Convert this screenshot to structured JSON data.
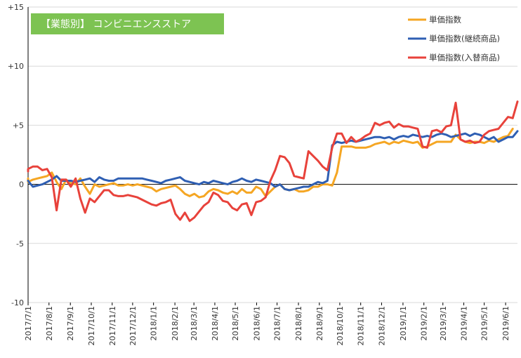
{
  "chart_data": {
    "type": "line",
    "title": "【業態別】 コンビニエンスストア",
    "ylim": [
      -10,
      15
    ],
    "yticks": [
      15,
      10,
      5,
      0,
      -5,
      -10
    ],
    "ytick_labels": [
      "+15",
      "+10",
      "+5",
      "0",
      "-5",
      "-10"
    ],
    "grid": "horizontal",
    "legend_placement": "top-right",
    "title_box_color": "#7dc352",
    "axis_color": "#000000",
    "grid_color": "#d9d9d9",
    "x_tick_labels": [
      "2017/7/1",
      "2017/8/1",
      "2017/9/1",
      "2017/10/1",
      "2017/11/1",
      "2017/12/1",
      "2018/1/1",
      "2018/2/1",
      "2018/3/1",
      "2018/4/1",
      "2018/5/1",
      "2018/6/1",
      "2018/7/1",
      "2018/8/1",
      "2018/9/1",
      "2018/10/1",
      "2018/11/1",
      "2018/12/1",
      "2019/1/1",
      "2019/2/1",
      "2019/3/1",
      "2019/4/1",
      "2019/5/1",
      "2019/6/1"
    ],
    "x_tick_weeks": [
      0,
      4.4,
      8.9,
      13.3,
      17.7,
      22.0,
      26.4,
      30.9,
      34.9,
      39.3,
      43.6,
      48.1,
      52.4,
      56.9,
      61.3,
      65.6,
      70.0,
      74.4,
      78.9,
      83.3,
      87.3,
      91.7,
      96.0,
      100.5
    ],
    "x_weeks_total": 103,
    "series": [
      {
        "name": "単価指数",
        "color": "#f5a623",
        "values": [
          0.5,
          0.2,
          0.4,
          0.5,
          0.6,
          0.7,
          1.0,
          0.2,
          -0.4,
          0.4,
          0.1,
          0.0,
          0.5,
          -0.2,
          -0.8,
          0.0,
          -0.2,
          -0.1,
          0.0,
          0.1,
          -0.1,
          -0.1,
          0.0,
          -0.1,
          0.0,
          -0.1,
          -0.2,
          -0.3,
          -0.6,
          -0.4,
          -0.3,
          -0.2,
          -0.1,
          -0.4,
          -0.8,
          -1.0,
          -0.8,
          -1.1,
          -1.0,
          -0.6,
          -0.4,
          -0.5,
          -0.7,
          -0.8,
          -0.6,
          -0.8,
          -0.4,
          -0.7,
          -0.7,
          -0.2,
          -0.4,
          -1.0,
          -0.6,
          -0.2,
          0.0,
          -0.4,
          -0.5,
          -0.4,
          -0.6,
          -0.6,
          -0.5,
          -0.2,
          -0.2,
          0.0,
          0.0,
          -0.1,
          1.0,
          3.2,
          3.2,
          3.2,
          3.1,
          3.1,
          3.1,
          3.2,
          3.4,
          3.5,
          3.6,
          3.4,
          3.6,
          3.5,
          3.7,
          3.6,
          3.5,
          3.6,
          3.1,
          3.2,
          3.4,
          3.6,
          3.6,
          3.6,
          3.6,
          4.2,
          3.8,
          3.6,
          3.5,
          3.6,
          3.6,
          3.5,
          3.7,
          3.6,
          3.8,
          4.0,
          4.1,
          4.7
        ],
        "x_offset": -1
      },
      {
        "name": "単価指数(継続商品)",
        "color": "#2f5fb3",
        "values": [
          0.3,
          -0.2,
          -0.1,
          0.0,
          0.2,
          0.4,
          0.7,
          0.3,
          0.3,
          0.3,
          0.2,
          0.3,
          0.4,
          0.5,
          0.2,
          0.6,
          0.4,
          0.3,
          0.3,
          0.5,
          0.5,
          0.5,
          0.5,
          0.5,
          0.5,
          0.4,
          0.3,
          0.2,
          0.1,
          0.3,
          0.4,
          0.5,
          0.6,
          0.3,
          0.2,
          0.1,
          0.0,
          0.2,
          0.1,
          0.3,
          0.2,
          0.1,
          0.0,
          0.2,
          0.3,
          0.5,
          0.3,
          0.2,
          0.4,
          0.3,
          0.2,
          0.1,
          -0.2,
          0.0,
          -0.4,
          -0.5,
          -0.4,
          -0.3,
          -0.2,
          -0.2,
          0.0,
          0.2,
          0.1,
          0.3,
          3.3,
          3.6,
          3.5,
          3.6,
          3.7,
          3.6,
          3.7,
          3.8,
          3.9,
          4.0,
          4.0,
          3.9,
          4.0,
          3.8,
          4.0,
          4.1,
          4.0,
          4.2,
          4.1,
          4.0,
          4.1,
          4.0,
          4.2,
          4.3,
          4.2,
          4.0,
          4.1,
          4.2,
          4.3,
          4.1,
          4.3,
          4.2,
          4.0,
          3.8,
          4.0,
          3.6,
          3.8,
          4.0,
          4.0,
          4.5
        ],
        "x_offset": 0
      },
      {
        "name": "単価指数(入替商品)",
        "color": "#e8423b",
        "values": [
          1.1,
          1.1,
          1.3,
          1.5,
          1.5,
          1.2,
          1.3,
          0.6,
          -2.2,
          0.4,
          0.4,
          -0.2,
          0.5,
          -1.2,
          -2.4,
          -1.2,
          -1.5,
          -1.0,
          -0.5,
          -0.5,
          -0.9,
          -1.0,
          -1.0,
          -0.9,
          -1.0,
          -1.1,
          -1.3,
          -1.5,
          -1.7,
          -1.8,
          -1.6,
          -1.5,
          -1.3,
          -2.5,
          -3.0,
          -2.4,
          -3.1,
          -2.8,
          -2.3,
          -1.8,
          -1.5,
          -0.7,
          -0.9,
          -1.4,
          -1.5,
          -2.0,
          -2.2,
          -1.7,
          -1.6,
          -2.6,
          -1.5,
          -1.4,
          -1.1,
          0.3,
          1.2,
          2.4,
          2.3,
          1.8,
          0.7,
          0.6,
          0.5,
          2.8,
          2.4,
          2.0,
          1.5,
          1.2,
          3.1,
          4.3,
          4.3,
          3.5,
          4.0,
          3.6,
          3.8,
          4.1,
          4.3,
          5.2,
          5.0,
          5.2,
          5.3,
          4.8,
          5.1,
          4.9,
          4.9,
          4.8,
          4.7,
          3.2,
          3.1,
          4.5,
          4.6,
          4.4,
          4.9,
          5.0,
          6.9,
          3.8,
          3.6,
          3.7,
          3.5,
          3.6,
          4.2,
          4.5,
          4.6,
          4.7,
          5.2,
          5.7,
          5.6,
          7.0
        ],
        "x_offset": -2
      }
    ]
  }
}
